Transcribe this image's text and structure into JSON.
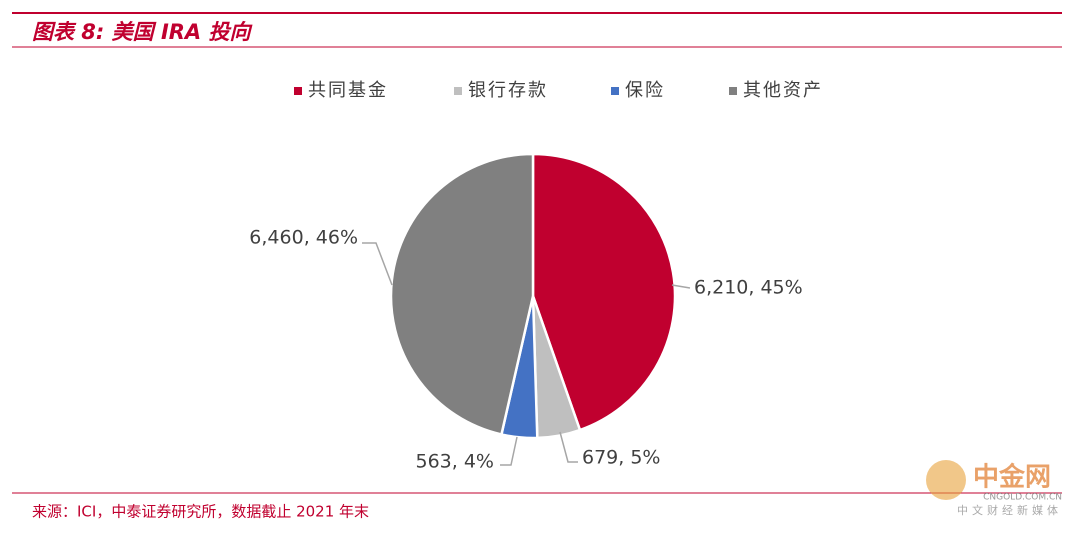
{
  "header": {
    "title": "图表 8: 美国 IRA 投向"
  },
  "chart_data": {
    "type": "pie",
    "categories": [
      "共同基金",
      "银行存款",
      "保险",
      "其他资产"
    ],
    "values": [
      6210,
      679,
      563,
      6460
    ],
    "value_labels": [
      "6,210, 45%",
      "679, 5%",
      "563, 4%",
      "6,460, 46%"
    ],
    "colors": [
      "#c0002f",
      "#bfbfbf",
      "#4472c4",
      "#808080"
    ]
  },
  "source": "来源：ICI，中泰证券研究所，数据截止 2021 年末",
  "watermark": {
    "logo": "中金网",
    "url": "CNGOLD.COM.CN",
    "tagline": "中文财经新媒体"
  }
}
